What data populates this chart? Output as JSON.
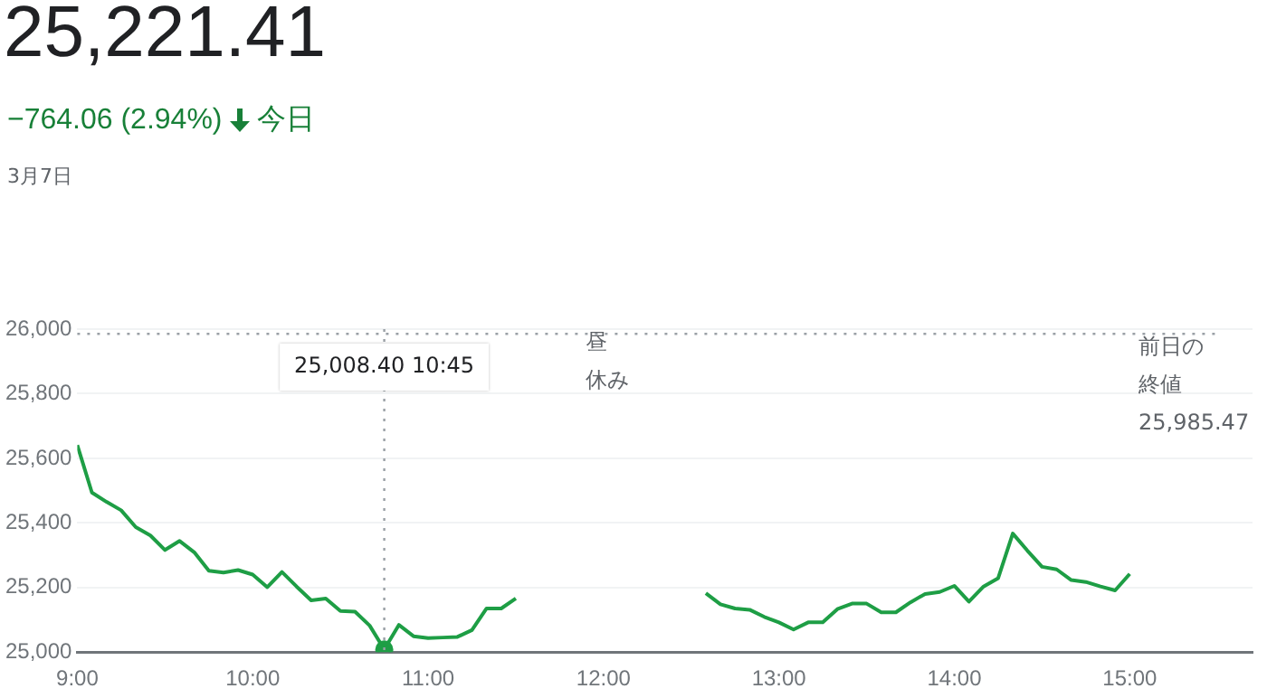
{
  "chart_data": {
    "type": "line",
    "title": "25,221.41",
    "subtitle": "−764.06 (2.94%)",
    "annotations": [
      "今日",
      "3月7日",
      "昼休み",
      "25,008.40 10:45"
    ],
    "x": [
      9,
      9.0833,
      9.1667,
      9.25,
      9.3333,
      9.4167,
      9.5,
      9.5833,
      9.6667,
      9.75,
      9.8333,
      9.9167,
      10,
      10.0833,
      10.1667,
      10.25,
      10.3333,
      10.4167,
      10.5,
      10.5833,
      10.6667,
      10.75,
      10.8333,
      10.9167,
      11,
      11.0833,
      11.1667,
      11.25,
      11.3333,
      11.4167,
      11.5,
      12,
      12.5833,
      12.6667,
      12.75,
      12.8333,
      12.9167,
      13,
      13.0833,
      13.1667,
      13.25,
      13.3333,
      13.4167,
      13.5,
      13.5833,
      13.6667,
      13.75,
      13.8333,
      13.9167,
      14,
      14.0833,
      14.1667,
      14.25,
      14.3333,
      14.4167,
      14.5,
      14.5833,
      14.6667,
      14.75,
      14.8333,
      14.9167,
      15
    ],
    "series": [
      {
        "color": "#1e9e45",
        "values": [
          25641,
          25494,
          25465,
          25439,
          25387,
          25361,
          25316,
          25344,
          25309,
          25252,
          25246,
          25254,
          25240,
          25201,
          25248,
          25203,
          25160,
          25166,
          25127,
          25125,
          25082,
          25008.4,
          25084,
          25049,
          25043,
          25045,
          25047,
          25068,
          25135,
          25135,
          25166,
          null,
          25182,
          25148,
          25135,
          25131,
          25109,
          25092,
          25070,
          25092,
          25092,
          25133,
          25150,
          25150,
          25123,
          25123,
          25154,
          25180,
          25186,
          25205,
          25156,
          25203,
          25229,
          25367,
          25314,
          25264,
          25256,
          25223,
          25217,
          25203,
          25191,
          25242
        ]
      }
    ],
    "xlim": [
      9,
      15.7
    ],
    "xticks": [
      {
        "value": 9,
        "label": "9:00"
      },
      {
        "value": 10,
        "label": "10:00"
      },
      {
        "value": 11,
        "label": "11:00"
      },
      {
        "value": 12,
        "label": "12:00"
      },
      {
        "value": 13,
        "label": "13:00"
      },
      {
        "value": 14,
        "label": "14:00"
      },
      {
        "value": 15,
        "label": "15:00"
      }
    ],
    "ylim": [
      25000,
      26000
    ],
    "yticks": [
      {
        "value": 25000,
        "label": "25,000"
      },
      {
        "value": 25200,
        "label": "25,200"
      },
      {
        "value": 25400,
        "label": "25,400"
      },
      {
        "value": 25600,
        "label": "25,600"
      },
      {
        "value": 25800,
        "label": "25,800"
      },
      {
        "value": 26000,
        "label": "26,000"
      }
    ],
    "grid": "y",
    "legend": false,
    "marker": "none",
    "ref_lines": [
      {
        "axis": "y",
        "value": 25985.47,
        "label": "前日の終値 25,985.47",
        "line_style": "dotted",
        "color": "#9aa0a6"
      },
      {
        "axis": "x",
        "value": 10.75,
        "line_style": "dotted",
        "color": "#9aa0a6"
      }
    ]
  }
}
